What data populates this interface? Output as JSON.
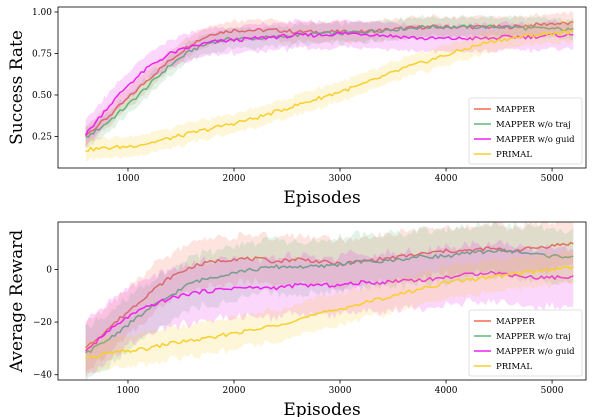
{
  "chart_data": [
    {
      "type": "line",
      "xlabel": "Episodes",
      "ylabel": "Success Rate",
      "xlim": [
        340,
        5320
      ],
      "ylim": [
        0.06,
        1.03
      ],
      "xticks": [
        1000,
        2000,
        3000,
        4000,
        5000
      ],
      "yticks": [
        0.25,
        0.5,
        0.75,
        1.0
      ],
      "ytick_labels": [
        "0.25",
        "0.50",
        "0.75",
        "1.00"
      ],
      "grid": false,
      "legend_position": "bottom-right",
      "series": [
        {
          "name": "MAPPER",
          "color": "#f46a4f",
          "x": [
            600,
            800,
            1000,
            1200,
            1400,
            1600,
            1800,
            2000,
            2200,
            2400,
            2600,
            2800,
            3000,
            3200,
            3400,
            3600,
            3800,
            4000,
            4200,
            4400,
            4600,
            4800,
            5000,
            5200
          ],
          "y": [
            0.26,
            0.36,
            0.48,
            0.6,
            0.71,
            0.81,
            0.87,
            0.89,
            0.89,
            0.89,
            0.88,
            0.88,
            0.88,
            0.88,
            0.89,
            0.9,
            0.91,
            0.91,
            0.91,
            0.91,
            0.91,
            0.92,
            0.93,
            0.93
          ],
          "band": 0.06
        },
        {
          "name": "MAPPER w/o traj",
          "color": "#5cb87a",
          "x": [
            600,
            800,
            1000,
            1200,
            1400,
            1600,
            1800,
            2000,
            2200,
            2400,
            2600,
            2800,
            3000,
            3200,
            3400,
            3600,
            3800,
            4000,
            4200,
            4400,
            4600,
            4800,
            5000,
            5200
          ],
          "y": [
            0.24,
            0.33,
            0.44,
            0.56,
            0.68,
            0.77,
            0.82,
            0.84,
            0.84,
            0.85,
            0.86,
            0.87,
            0.87,
            0.88,
            0.89,
            0.9,
            0.91,
            0.91,
            0.91,
            0.91,
            0.91,
            0.9,
            0.9,
            0.89
          ],
          "band": 0.06
        },
        {
          "name": "MAPPER w/o guid",
          "color": "#ee22ee",
          "x": [
            600,
            800,
            1000,
            1200,
            1400,
            1600,
            1800,
            2000,
            2200,
            2400,
            2600,
            2800,
            3000,
            3200,
            3400,
            3600,
            3800,
            4000,
            4200,
            4400,
            4600,
            4800,
            5000,
            5200
          ],
          "y": [
            0.26,
            0.42,
            0.56,
            0.67,
            0.75,
            0.79,
            0.82,
            0.83,
            0.84,
            0.85,
            0.86,
            0.86,
            0.87,
            0.87,
            0.86,
            0.85,
            0.84,
            0.84,
            0.84,
            0.84,
            0.85,
            0.85,
            0.86,
            0.86
          ],
          "band": 0.08
        },
        {
          "name": "PRIMAL",
          "color": "#f8cf2b",
          "x": [
            600,
            800,
            1000,
            1200,
            1400,
            1600,
            1800,
            2000,
            2200,
            2400,
            2600,
            2800,
            3000,
            3200,
            3400,
            3600,
            3800,
            4000,
            4200,
            4400,
            4600,
            4800,
            5000,
            5200
          ],
          "y": [
            0.17,
            0.18,
            0.19,
            0.21,
            0.24,
            0.27,
            0.3,
            0.33,
            0.36,
            0.4,
            0.44,
            0.48,
            0.52,
            0.56,
            0.61,
            0.66,
            0.7,
            0.74,
            0.78,
            0.82,
            0.84,
            0.86,
            0.87,
            0.88
          ],
          "band": 0.06
        }
      ]
    },
    {
      "type": "line",
      "xlabel": "Episodes",
      "ylabel": "Average Reward",
      "xlim": [
        340,
        5320
      ],
      "ylim": [
        -42,
        18
      ],
      "xticks": [
        1000,
        2000,
        3000,
        4000,
        5000
      ],
      "yticks": [
        -40,
        -20,
        0
      ],
      "ytick_labels": [
        "−40",
        "−20",
        "0"
      ],
      "grid": false,
      "legend_position": "bottom-right",
      "series": [
        {
          "name": "MAPPER",
          "color": "#f46a4f",
          "x": [
            600,
            800,
            1000,
            1200,
            1400,
            1600,
            1800,
            2000,
            2200,
            2400,
            2600,
            2800,
            3000,
            3200,
            3400,
            3600,
            3800,
            4000,
            4200,
            4400,
            4600,
            4800,
            5000,
            5200
          ],
          "y": [
            -30,
            -23,
            -16,
            -9,
            -3,
            1,
            3,
            4,
            4,
            3,
            4,
            3,
            2,
            3,
            4,
            5,
            6,
            7,
            7,
            8,
            7,
            8,
            9,
            10
          ],
          "band": 9
        },
        {
          "name": "MAPPER w/o traj",
          "color": "#5cb87a",
          "x": [
            600,
            800,
            1000,
            1200,
            1400,
            1600,
            1800,
            2000,
            2200,
            2400,
            2600,
            2800,
            3000,
            3200,
            3400,
            3600,
            3800,
            4000,
            4200,
            4400,
            4600,
            4800,
            5000,
            5200
          ],
          "y": [
            -32,
            -27,
            -21,
            -15,
            -10,
            -5,
            -3,
            -1,
            0,
            1,
            1,
            1,
            2,
            3,
            3,
            4,
            5,
            5,
            6,
            7,
            7,
            6,
            5,
            5
          ],
          "band": 10
        },
        {
          "name": "MAPPER w/o guid",
          "color": "#ee22ee",
          "x": [
            600,
            800,
            1000,
            1200,
            1400,
            1600,
            1800,
            2000,
            2200,
            2400,
            2600,
            2800,
            3000,
            3200,
            3400,
            3600,
            3800,
            4000,
            4200,
            4400,
            4600,
            4800,
            5000,
            5200
          ],
          "y": [
            -31,
            -24,
            -18,
            -14,
            -11,
            -9,
            -8,
            -7,
            -7,
            -7,
            -6,
            -6,
            -6,
            -5,
            -5,
            -4,
            -4,
            -3,
            -2,
            -1,
            -2,
            -3,
            -3,
            -3
          ],
          "band": 11
        },
        {
          "name": "PRIMAL",
          "color": "#f8cf2b",
          "x": [
            600,
            800,
            1000,
            1200,
            1400,
            1600,
            1800,
            2000,
            2200,
            2400,
            2600,
            2800,
            3000,
            3200,
            3400,
            3600,
            3800,
            4000,
            4200,
            4400,
            4600,
            4800,
            5000,
            5200
          ],
          "y": [
            -34,
            -32,
            -31,
            -30,
            -28,
            -27,
            -26,
            -24,
            -23,
            -21,
            -19,
            -17,
            -15,
            -13,
            -11,
            -9,
            -7,
            -5,
            -4,
            -3,
            -2,
            -1,
            0,
            1
          ],
          "band": 6
        }
      ]
    }
  ]
}
